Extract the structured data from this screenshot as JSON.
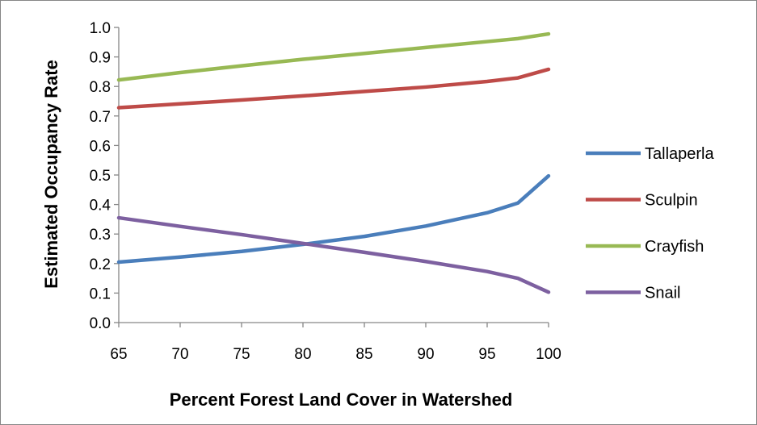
{
  "chart_data": {
    "type": "line",
    "title": "",
    "xlabel": "Percent Forest Land Cover in Watershed",
    "ylabel": "Estimated Occupancy Rate",
    "xlim": [
      65,
      100
    ],
    "ylim": [
      0.0,
      1.0
    ],
    "x_ticks": [
      65,
      70,
      75,
      80,
      85,
      90,
      95,
      100
    ],
    "x_tick_labels": [
      "65",
      "70",
      "75",
      "80",
      "85",
      "90",
      "95",
      "100"
    ],
    "y_ticks": [
      0.0,
      0.1,
      0.2,
      0.3,
      0.4,
      0.5,
      0.6,
      0.7,
      0.8,
      0.9,
      1.0
    ],
    "y_tick_labels": [
      "0.0",
      "0.1",
      "0.2",
      "0.3",
      "0.4",
      "0.5",
      "0.6",
      "0.7",
      "0.8",
      "0.9",
      "1.0"
    ],
    "grid": false,
    "legend_position": "right",
    "series": [
      {
        "name": "Tallaperla",
        "color": "#4a7ebb",
        "points": [
          [
            65,
            0.205
          ],
          [
            70,
            0.222
          ],
          [
            75,
            0.241
          ],
          [
            80,
            0.265
          ],
          [
            85,
            0.292
          ],
          [
            90,
            0.327
          ],
          [
            95,
            0.372
          ],
          [
            97.5,
            0.405
          ],
          [
            100,
            0.497
          ]
        ]
      },
      {
        "name": "Sculpin",
        "color": "#be4b48",
        "points": [
          [
            65,
            0.728
          ],
          [
            70,
            0.741
          ],
          [
            75,
            0.754
          ],
          [
            80,
            0.768
          ],
          [
            85,
            0.783
          ],
          [
            90,
            0.798
          ],
          [
            95,
            0.817
          ],
          [
            97.5,
            0.829
          ],
          [
            100,
            0.858
          ]
        ]
      },
      {
        "name": "Crayfish",
        "color": "#98b954",
        "points": [
          [
            65,
            0.822
          ],
          [
            70,
            0.847
          ],
          [
            75,
            0.87
          ],
          [
            80,
            0.892
          ],
          [
            85,
            0.912
          ],
          [
            90,
            0.932
          ],
          [
            95,
            0.952
          ],
          [
            97.5,
            0.962
          ],
          [
            100,
            0.978
          ]
        ]
      },
      {
        "name": "Snail",
        "color": "#7d60a0",
        "points": [
          [
            65,
            0.355
          ],
          [
            70,
            0.326
          ],
          [
            75,
            0.298
          ],
          [
            80,
            0.268
          ],
          [
            85,
            0.238
          ],
          [
            90,
            0.207
          ],
          [
            95,
            0.173
          ],
          [
            97.5,
            0.15
          ],
          [
            100,
            0.103
          ]
        ]
      }
    ]
  }
}
